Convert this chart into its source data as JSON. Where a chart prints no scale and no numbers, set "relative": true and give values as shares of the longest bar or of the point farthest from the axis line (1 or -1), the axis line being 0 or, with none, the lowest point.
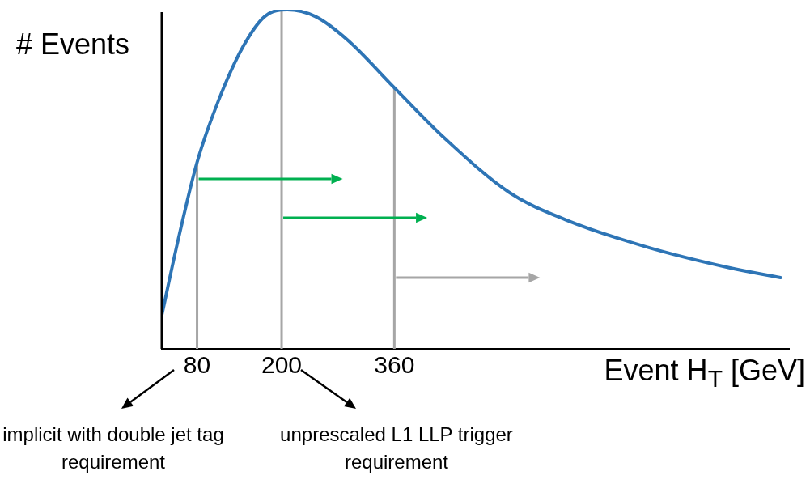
{
  "chart_data": {
    "type": "line",
    "ylabel": "# Events",
    "xlabel": "Event H$_{T}$ [GeV]",
    "relative": true,
    "x": [
      30,
      53,
      80,
      110,
      145,
      176,
      208,
      248,
      294,
      360,
      432,
      524,
      604,
      719,
      834,
      908
    ],
    "series": [
      {
        "color": "#2e75b6",
        "values": [
          0.1,
          0.32,
          0.55,
          0.73,
          0.89,
          0.98,
          1,
          0.98,
          0.91,
          0.77,
          0.62,
          0.46,
          0.38,
          0.3,
          0.24,
          0.21
        ]
      }
    ],
    "xlim": [
      30,
      920
    ],
    "xticks": [
      80,
      200,
      360
    ],
    "ref_lines": [
      {
        "axis": "x",
        "value": 80,
        "color": "#a6a6a6"
      },
      {
        "axis": "x",
        "value": 200,
        "color": "#a6a6a6"
      },
      {
        "axis": "x",
        "value": 360,
        "color": "#a6a6a6"
      }
    ],
    "annotations": [
      "implicit with double jet tag requirement",
      "unprescaled L1 LLP trigger requirement"
    ],
    "grid": false,
    "legend": false,
    "marker": "none",
    "line_style": "solid"
  }
}
